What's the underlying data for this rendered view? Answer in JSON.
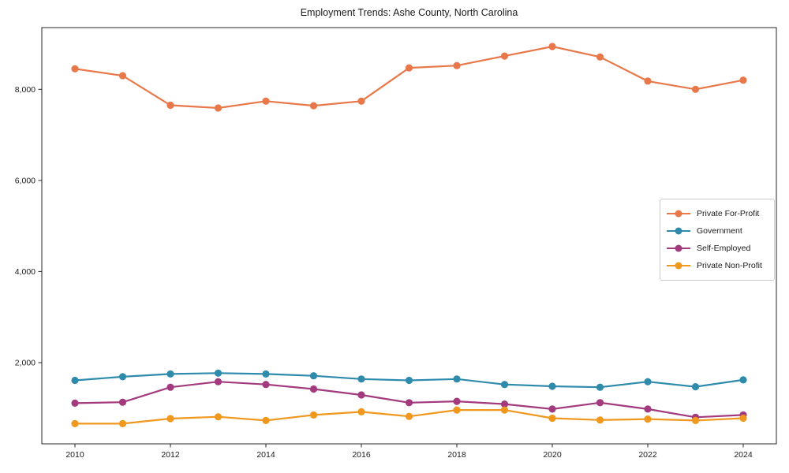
{
  "window": {
    "background": "#ffffff"
  },
  "chart_data": {
    "type": "line",
    "title": "Employment Trends: Ashe County, North Carolina",
    "xlabel": "",
    "ylabel": "",
    "grid": false,
    "legend_position": "center right",
    "x": [
      2010,
      2011,
      2012,
      2013,
      2014,
      2015,
      2016,
      2017,
      2018,
      2019,
      2020,
      2021,
      2022,
      2023,
      2024
    ],
    "xticks": [
      2010,
      2012,
      2014,
      2016,
      2018,
      2020,
      2022,
      2024
    ],
    "xtick_labels": [
      "2010",
      "2012",
      "2014",
      "2016",
      "2018",
      "2020",
      "2022",
      "2024"
    ],
    "yticks": [
      2000,
      4000,
      6000,
      8000
    ],
    "ytick_labels": [
      "2,000",
      "4,000",
      "6,000",
      "8,000"
    ],
    "ylim": [
      217,
      9355
    ],
    "series": [
      {
        "name": "Private For-Profit",
        "color": "#e8784a",
        "values": [
          8450,
          8300,
          7650,
          7590,
          7740,
          7640,
          7740,
          8470,
          8520,
          8730,
          8940,
          8710,
          8180,
          8000,
          8200
        ]
      },
      {
        "name": "Government",
        "color": "#2e8bab",
        "values": [
          1610,
          1690,
          1750,
          1770,
          1750,
          1710,
          1640,
          1610,
          1640,
          1520,
          1480,
          1460,
          1580,
          1470,
          1620
        ]
      },
      {
        "name": "Self-Employed",
        "color": "#a23a7d",
        "values": [
          1110,
          1130,
          1460,
          1580,
          1520,
          1420,
          1290,
          1120,
          1150,
          1090,
          980,
          1120,
          980,
          800,
          850
        ]
      },
      {
        "name": "Private Non-Profit",
        "color": "#f0981e",
        "values": [
          660,
          660,
          770,
          810,
          730,
          850,
          920,
          820,
          960,
          960,
          780,
          740,
          760,
          730,
          780
        ]
      }
    ]
  }
}
